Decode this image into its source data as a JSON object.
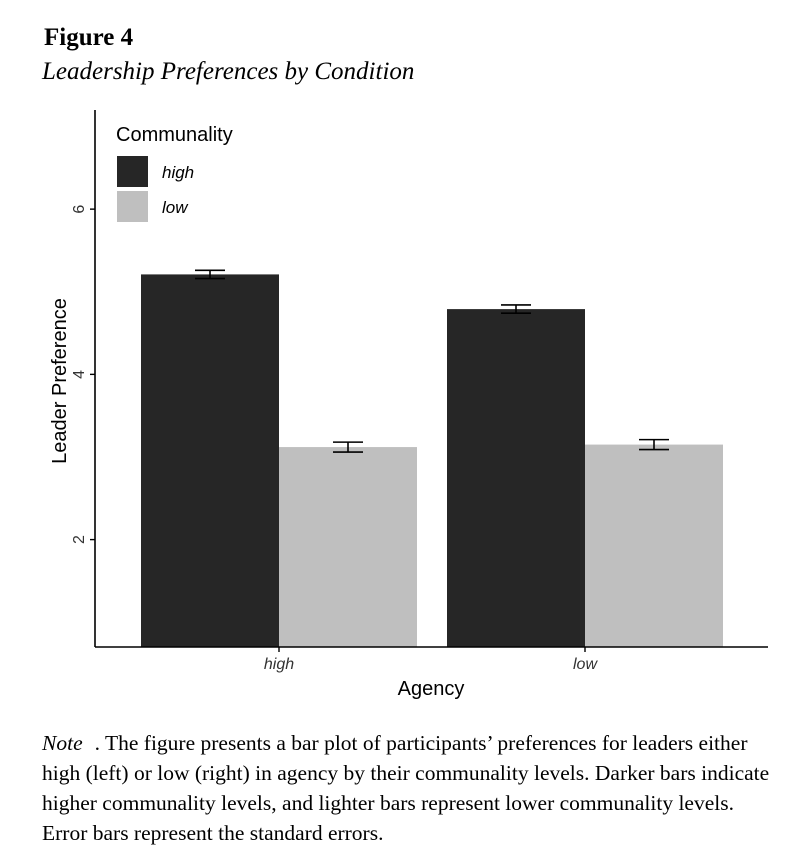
{
  "figure": {
    "label": "Figure 4",
    "title": "Leadership Preferences by Condition"
  },
  "note": {
    "label": "Note",
    "text": "The figure presents a bar plot of participants’ preferences for leaders either high (left) or low (right) in agency by their communality levels. Darker bars indicate higher communality levels, and lighter bars represent lower communality levels. Error bars represent the standard errors."
  },
  "chart_data": {
    "type": "bar",
    "xlabel": "Agency",
    "ylabel": "Leader Preference",
    "categories": [
      "high",
      "low"
    ],
    "legend": {
      "title": "Communality",
      "placement": "top-left"
    },
    "series": [
      {
        "name": "high",
        "color": "#262626",
        "values": [
          5.21,
          4.79
        ],
        "se": [
          0.05,
          0.05
        ]
      },
      {
        "name": "low",
        "color": "#bfbfbf",
        "values": [
          3.12,
          3.15
        ],
        "se": [
          0.06,
          0.06
        ]
      }
    ],
    "yticks": [
      2,
      4,
      6
    ],
    "ylim": [
      0.7,
      7.2
    ],
    "grid": false
  }
}
